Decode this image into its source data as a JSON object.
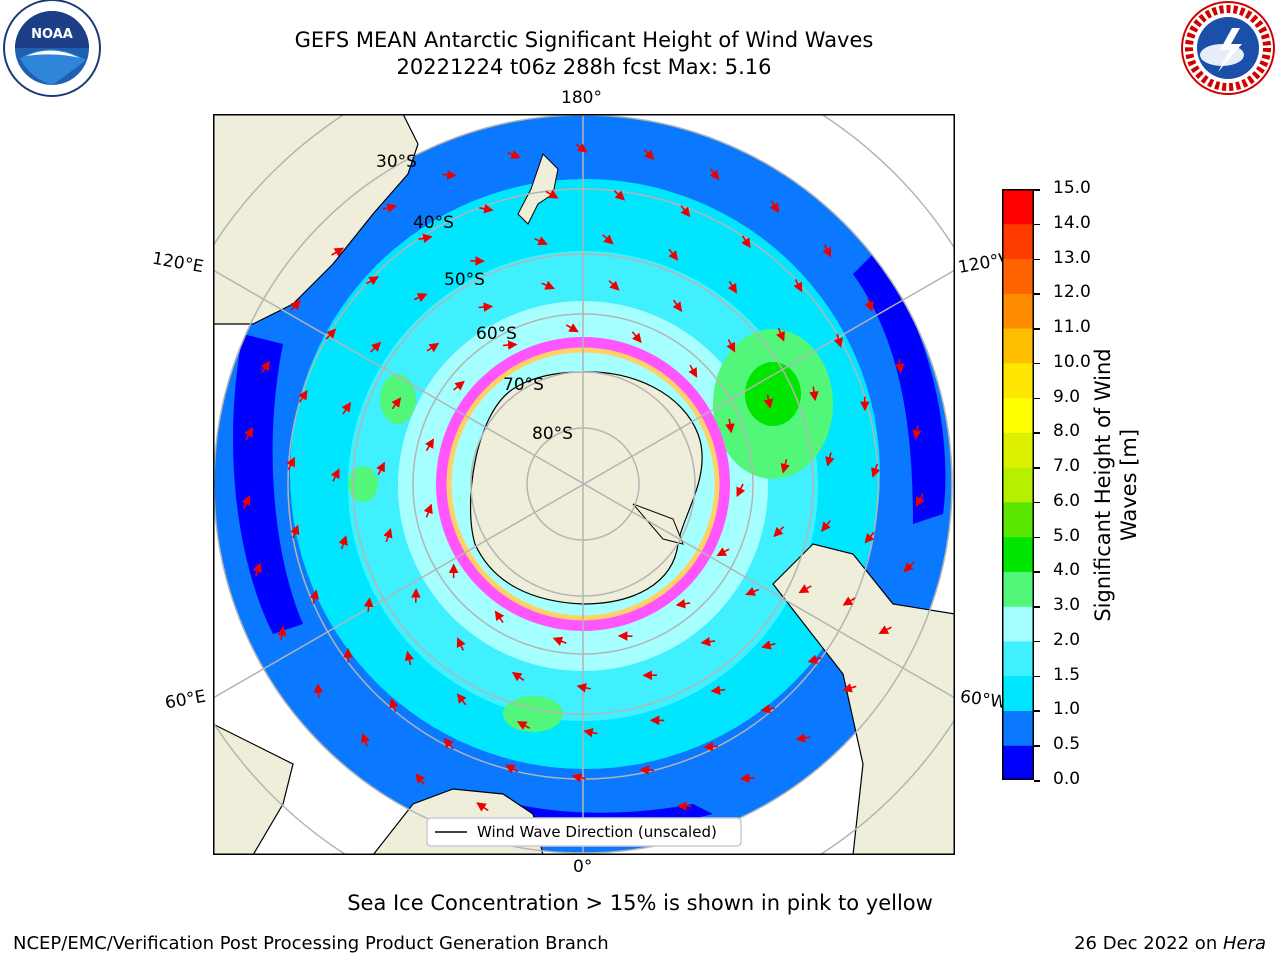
{
  "title_line1": "GEFS MEAN Antarctic Significant Height of Wind Waves",
  "title_line2": "20221224 t06z 288h fcst   Max: 5.16",
  "longitude_labels": [
    "180°",
    "120°E",
    "120°W",
    "60°E",
    "60°W",
    "0°"
  ],
  "latitude_labels": [
    "30°S",
    "40°S",
    "50°S",
    "60°S",
    "70°S",
    "80°S"
  ],
  "legend_label": "Wind Wave Direction (unscaled)",
  "colorbar": {
    "title_line1": "Significant Height of Wind",
    "title_line2": "Waves [m]",
    "ticks": [
      "0.0",
      "0.5",
      "1.0",
      "1.5",
      "2.0",
      "3.0",
      "4.0",
      "5.0",
      "6.0",
      "7.0",
      "8.0",
      "9.0",
      "10.0",
      "11.0",
      "12.0",
      "13.0",
      "14.0",
      "15.0"
    ],
    "colors": [
      "#0000ff",
      "#0a78ff",
      "#00e6ff",
      "#40f0ff",
      "#a6ffff",
      "#52f77a",
      "#00e600",
      "#5ae600",
      "#b4f000",
      "#dcf000",
      "#ffff00",
      "#ffe600",
      "#ffbf00",
      "#ff8c00",
      "#ff6400",
      "#ff3c00",
      "#ff0000"
    ]
  },
  "caption": "Sea Ice Concentration > 15% is shown in pink to yellow",
  "footer_left": "NCEP/EMC/Verification Post Processing Product Generation Branch",
  "footer_date": "26 Dec 2022 on ",
  "footer_host": "Hera",
  "logos": {
    "noaa_text": "NOAA",
    "nws_text": "NATIONAL WEATHER SERVICE"
  }
}
